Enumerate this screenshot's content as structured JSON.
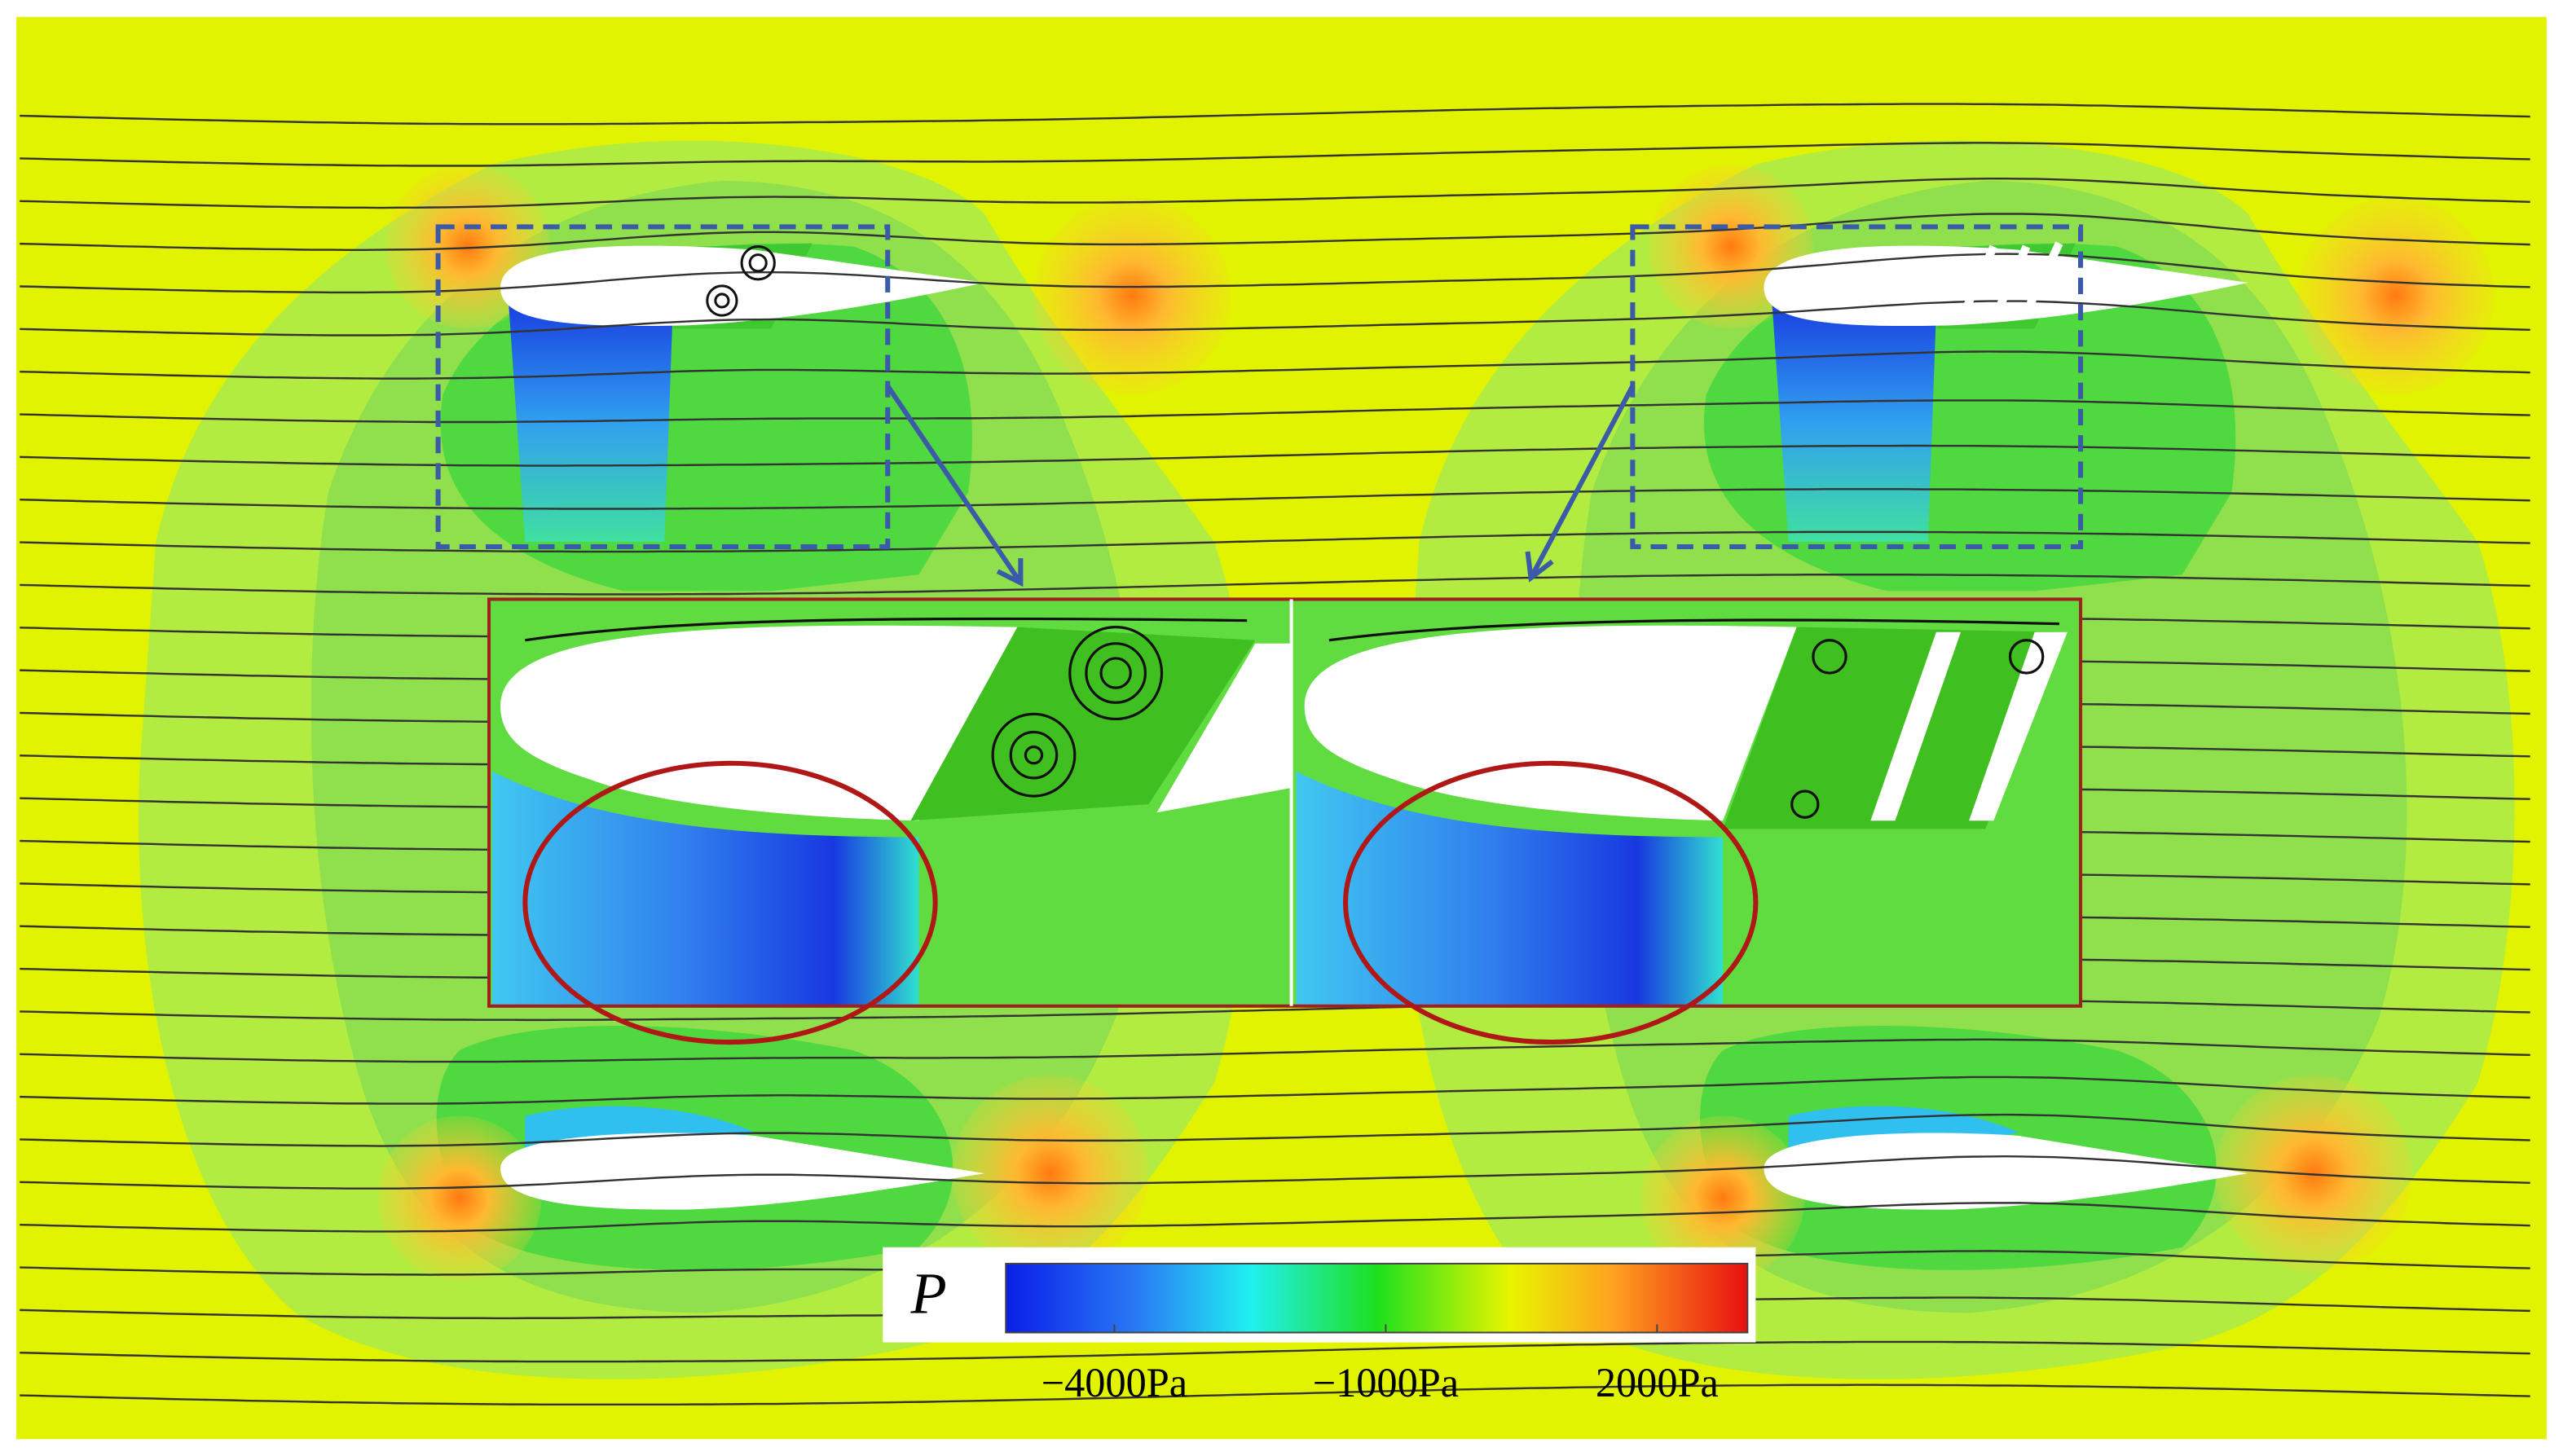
{
  "colorbar": {
    "label": "P",
    "lim": [
      -5200,
      3000
    ],
    "ticks": [
      {
        "value": -4000,
        "label": "−4000Pa"
      },
      {
        "value": -1000,
        "label": "−1000Pa"
      },
      {
        "value": 2000,
        "label": "2000Pa"
      }
    ]
  }
}
